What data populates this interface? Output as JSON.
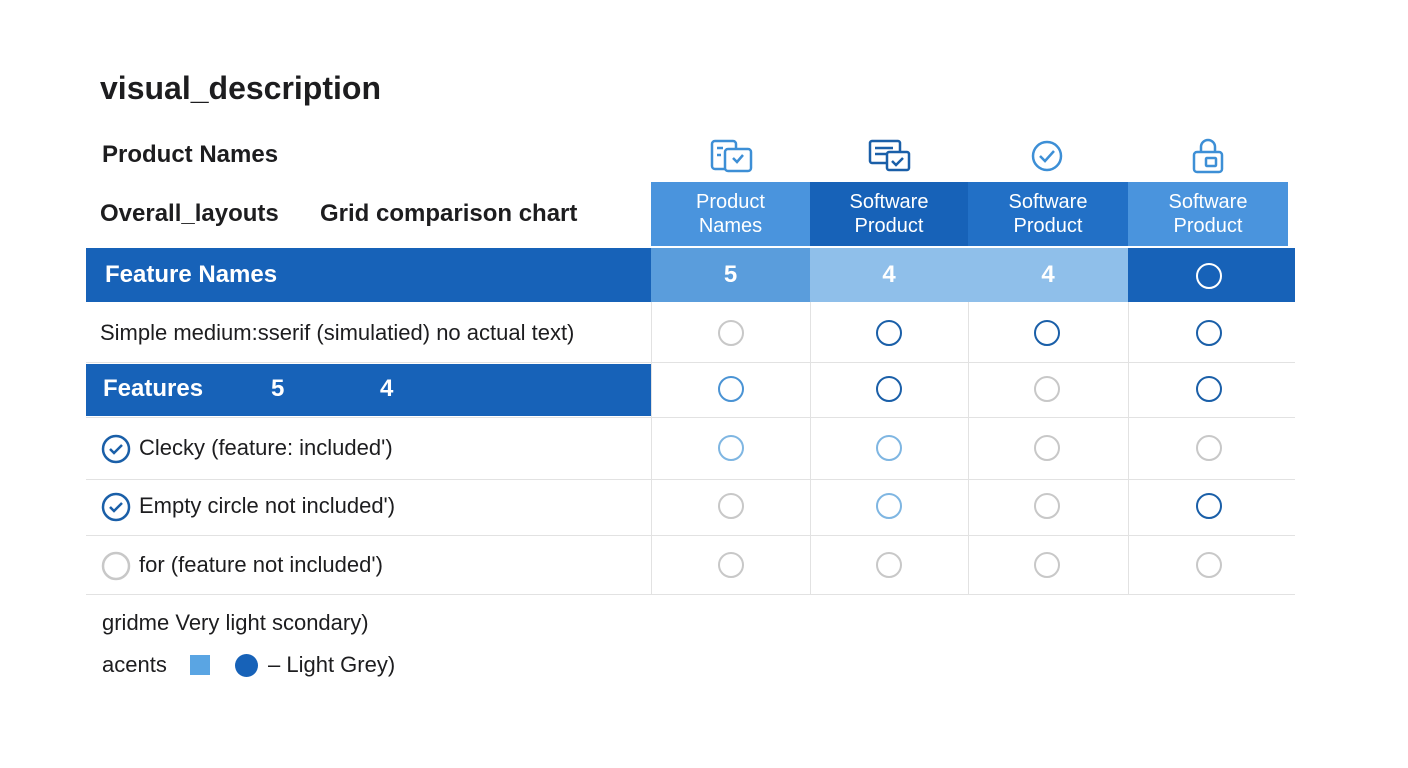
{
  "title": "visual_description",
  "header": {
    "product_names": "Product Names",
    "overall_layouts": "Overall_layouts",
    "layout_type": "Grid comparison chart"
  },
  "columns": [
    "Product Names",
    "Software Product",
    "Software Product",
    "Software Product"
  ],
  "summary_row": {
    "label": "Feature Names",
    "scores": [
      5,
      4,
      4
    ]
  },
  "rows": [
    {
      "label": "Simple medium:sserif (simulatied) no actual text)"
    },
    {
      "label": "Features",
      "scores": [
        5,
        4
      ]
    },
    {
      "label": "Clecky (feature: included')"
    },
    {
      "label": "Empty circle not included')"
    },
    {
      "label": "for (feature not included')"
    }
  ],
  "footer": {
    "note": "gridme Very light scondary)",
    "accents_label": "acents",
    "accents_text": "– Light Grey)"
  }
}
